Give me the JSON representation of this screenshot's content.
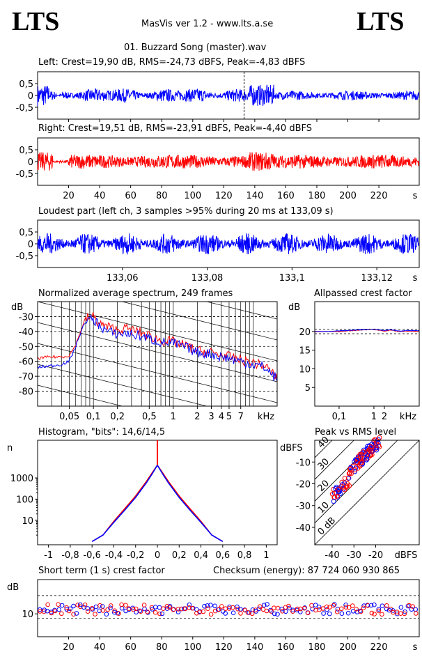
{
  "header": {
    "logo_left": "LTS",
    "logo_right": "LTS",
    "app_title": "MasVis ver 1.2 - www.lts.a.se",
    "file_title": "01. Buzzard Song (master).wav"
  },
  "colors": {
    "left": "#0000ff",
    "right": "#ff0000",
    "axis": "#000000"
  },
  "chart_data": [
    {
      "id": "left",
      "type": "line",
      "title": "Left: Crest=19,90 dB, RMS=-24,73 dBFS, Peak=-4,83 dBFS",
      "y_ticks": [
        "0,5",
        "0",
        "-0,5"
      ],
      "ylim": [
        -1,
        1
      ],
      "xlim": [
        0,
        246
      ],
      "peak_marker_s": 133.09
    },
    {
      "id": "right",
      "type": "line",
      "title": "Right: Crest=19,51 dB, RMS=-23,91 dBFS, Peak=-4,40 dBFS",
      "y_ticks": [
        "0,5",
        "0",
        "-0,5"
      ],
      "ylim": [
        -1,
        1
      ],
      "xlim": [
        0,
        246
      ],
      "x_ticks": [
        "20",
        "40",
        "60",
        "80",
        "100",
        "120",
        "140",
        "160",
        "180",
        "200",
        "220"
      ],
      "x_unit": "s"
    },
    {
      "id": "loudest",
      "type": "line",
      "title": "Loudest part (left  ch, 3 samples >95% during 20 ms at 133,09 s)",
      "y_ticks": [
        "0,5",
        "0",
        "-0,5"
      ],
      "ylim": [
        -1,
        1
      ],
      "xlim": [
        133.04,
        133.13
      ],
      "x_ticks": [
        "133,06",
        "133,08",
        "133,1",
        "133,12"
      ],
      "x_unit": "s"
    },
    {
      "id": "spectrum",
      "type": "line",
      "title": "Normalized average spectrum, 249 frames",
      "y_unit": "dB",
      "y_ticks": [
        "-30",
        "-40",
        "-50",
        "-60",
        "-70",
        "-80"
      ],
      "ylim": [
        -90,
        -20
      ],
      "x_ticks": [
        "0,05",
        "0,1",
        "0,2",
        "0,5",
        "1",
        "2",
        "3",
        "4",
        "5",
        "7"
      ],
      "x_unit": "kHz",
      "x_log": true,
      "xlim": [
        0.02,
        20
      ],
      "series": [
        {
          "x": [
            0.02,
            0.03,
            0.04,
            0.05,
            0.06,
            0.07,
            0.08,
            0.1,
            0.12,
            0.15,
            0.2,
            0.25,
            0.3,
            0.4,
            0.5,
            0.7,
            1,
            1.5,
            2,
            3,
            4,
            5,
            7,
            10,
            14,
            20
          ],
          "values": [
            -64,
            -63,
            -62,
            -60,
            -50,
            -40,
            -33,
            -32,
            -36,
            -40,
            -42,
            -41,
            -42,
            -43,
            -45,
            -47,
            -48,
            -51,
            -54,
            -55,
            -57,
            -58,
            -60,
            -62,
            -64,
            -72
          ]
        },
        {
          "x": [
            0.02,
            0.03,
            0.04,
            0.05,
            0.06,
            0.07,
            0.08,
            0.1,
            0.12,
            0.15,
            0.2,
            0.25,
            0.3,
            0.4,
            0.5,
            0.7,
            1,
            1.5,
            2,
            3,
            4,
            5,
            7,
            10,
            14,
            20
          ],
          "values": [
            -58,
            -57,
            -57,
            -56,
            -49,
            -39,
            -31,
            -30,
            -35,
            -37,
            -39,
            -38,
            -39,
            -41,
            -43,
            -46,
            -47,
            -50,
            -53,
            -54,
            -56,
            -57,
            -59,
            -61,
            -63,
            -71
          ]
        }
      ]
    },
    {
      "id": "crest",
      "type": "line",
      "title": "Allpassed crest factor",
      "y_unit": "dB",
      "y_ticks": [
        "20",
        "15",
        "10",
        "5"
      ],
      "ylim": [
        0,
        28
      ],
      "x_ticks": [
        "0,1",
        "1",
        "2"
      ],
      "x_unit": "kHz",
      "x_log": true,
      "xlim": [
        0.02,
        20
      ],
      "series": [
        {
          "x": [
            0.02,
            0.05,
            0.1,
            0.3,
            1,
            2,
            3,
            5,
            10,
            20
          ],
          "values": [
            20.0,
            20.0,
            20.2,
            20.4,
            20.6,
            20.3,
            20.5,
            20.1,
            20.3,
            20.2
          ]
        },
        {
          "x": [
            0.02,
            0.05,
            0.1,
            0.3,
            1,
            2,
            3,
            5,
            10,
            20
          ],
          "values": [
            19.9,
            20.0,
            20.0,
            20.3,
            20.6,
            20.1,
            20.4,
            20.0,
            20.1,
            20.0
          ]
        }
      ]
    },
    {
      "id": "histogram",
      "type": "line",
      "title": "Histogram, \"bits\": 14,6/14,5",
      "y_unit": "n",
      "y_ticks": [
        "1000",
        "100",
        "10"
      ],
      "y_log": true,
      "ylim": [
        0.7,
        60000
      ],
      "x_ticks": [
        "-1",
        "-0,8",
        "-0,6",
        "-0,4",
        "-0,2",
        "0",
        "0,2",
        "0,4",
        "0,6",
        "0,8",
        "1"
      ],
      "xlim": [
        -1.1,
        1.1
      ],
      "series": [
        {
          "x": [
            -0.6,
            -0.5,
            -0.4,
            -0.3,
            -0.2,
            -0.1,
            -0.05,
            0,
            0.05,
            0.1,
            0.2,
            0.3,
            0.4,
            0.5,
            0.6
          ],
          "values": [
            1,
            2,
            8,
            30,
            120,
            600,
            1500,
            4000,
            1500,
            600,
            120,
            30,
            8,
            2,
            1
          ]
        },
        {
          "x": [
            -0.6,
            -0.5,
            -0.4,
            -0.3,
            -0.2,
            -0.1,
            -0.05,
            0,
            0.05,
            0.1,
            0.2,
            0.3,
            0.4,
            0.5,
            0.6
          ],
          "values": [
            1,
            2,
            9,
            35,
            140,
            700,
            1700,
            4000,
            1700,
            700,
            140,
            35,
            9,
            2,
            1
          ]
        }
      ]
    },
    {
      "id": "peakrms",
      "type": "scatter",
      "title": "Peak vs RMS level",
      "y_unit": "dBFS",
      "y_ticks": [
        "-10",
        "-20",
        "-30",
        "-40"
      ],
      "ylim": [
        -48,
        0
      ],
      "x_ticks": [
        "-40",
        "-30",
        "-20"
      ],
      "x_unit": "dBFS",
      "xlim": [
        -48,
        0
      ],
      "diag_labels": [
        "40",
        "30",
        "20",
        "10",
        "0 dB"
      ]
    },
    {
      "id": "shortcrest",
      "type": "scatter",
      "title": "Short term (1 s) crest factor",
      "checksum": "Checksum (energy):   87 724 060 930 865",
      "y_unit": "dB",
      "y_ticks": [
        "10"
      ],
      "ylim": [
        0,
        25
      ],
      "xlim": [
        0,
        246
      ],
      "x_ticks": [
        "20",
        "40",
        "60",
        "80",
        "100",
        "120",
        "140",
        "160",
        "180",
        "200",
        "220"
      ],
      "x_unit": "s"
    }
  ]
}
